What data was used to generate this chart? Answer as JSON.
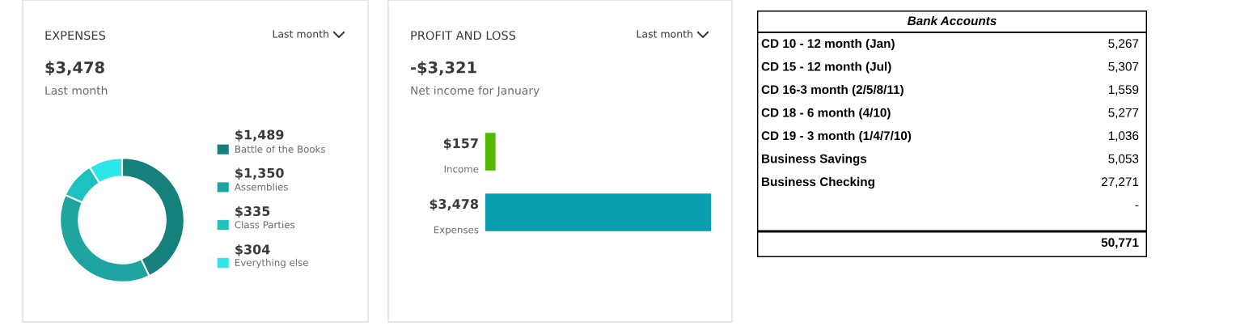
{
  "chart_data": [
    {
      "type": "donut",
      "title": "EXPENSES",
      "subtitle": "$3,478",
      "annotations": [
        "Last month",
        "Last month"
      ],
      "categories": [
        "Battle of the Books",
        "Assemblies",
        "Class Parties",
        "Everything else"
      ],
      "values": [
        1489,
        1350,
        335,
        304
      ],
      "value_labels": [
        "$1,489",
        "$1,350",
        "$335",
        "$304"
      ],
      "colors": [
        "#16807c",
        "#1fa5a1",
        "#1fc0c0",
        "#2de6e6"
      ],
      "legend": "right"
    },
    {
      "type": "bar",
      "orientation": "horizontal",
      "title": "PROFIT AND LOSS",
      "subtitle": "-$3,321",
      "annotations": [
        "Last month",
        "Net income for January"
      ],
      "categories": [
        "Income",
        "Expenses"
      ],
      "values": [
        157,
        3478
      ],
      "value_labels": [
        "$157",
        "$3,478"
      ],
      "colors": [
        "#53b700",
        "#0a9fb0"
      ]
    },
    {
      "type": "other",
      "title": "Bank Accounts",
      "categories": [
        "CD 10 - 12 month (Jan)",
        "CD 15 - 12 month (Jul)",
        "CD 16-3 month (2/5/8/11)",
        "CD 18 - 6 month (4/10)",
        "CD 19 - 3 month (1/4/7/10)",
        "Business Savings",
        "Business Checking",
        null,
        null
      ],
      "value_labels": [
        "5,267",
        "5,307",
        "1,559",
        "5,277",
        "1,036",
        "5,053",
        "27,271",
        "-",
        "50,771"
      ]
    }
  ]
}
